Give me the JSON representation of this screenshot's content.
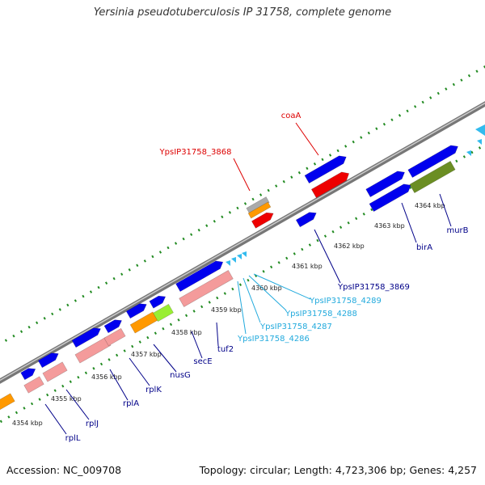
{
  "title": "Yersinia pseudotuberculosis IP 31758, complete genome",
  "accession": "Accession: NC_009708",
  "summary": "Topology: circular; Length: 4,723,306 bp; Genes: 4,257",
  "colors": {
    "blue": "#0000ee",
    "red": "#ee0000",
    "orange": "#ff9900",
    "pink": "#f49b9b",
    "green": "#99ee33",
    "olive": "#6b8e23",
    "gray": "#aaaaaa",
    "cyan": "#33bbee",
    "tick": "#228b22",
    "label_blue": "#000088",
    "label_cyan": "#22aadd",
    "label_red": "#dd0000"
  },
  "ruler": [
    "4354 kbp",
    "4355 kbp",
    "4356 kbp",
    "4357 kbp",
    "4358 kbp",
    "4359 kbp",
    "4360 kbp",
    "4361 kbp",
    "4362 kbp",
    "4363 kbp",
    "4364 kbp"
  ],
  "gene_labels": [
    "coaA",
    "YpsIP31758_3868",
    "rplL",
    "rplJ",
    "rplA",
    "rplK",
    "nusG",
    "secE",
    "tuf2",
    "YpsIP31758_4286",
    "YpsIP31758_4287",
    "YpsIP31758_4288",
    "YpsIP31758_4289",
    "YpsIP31758_3869",
    "birA",
    "murB"
  ]
}
